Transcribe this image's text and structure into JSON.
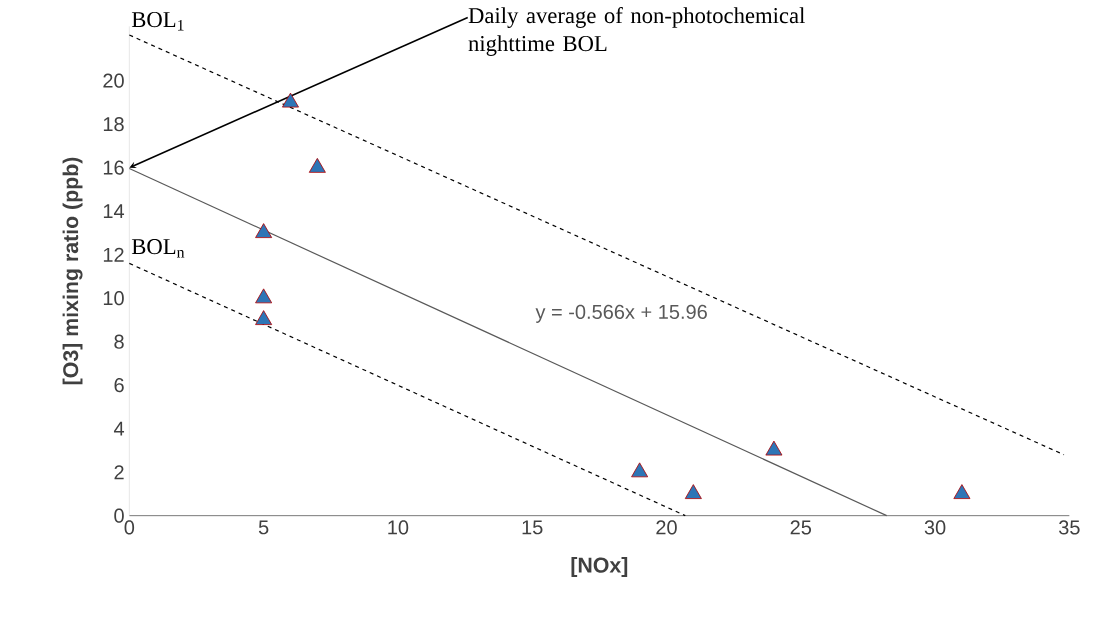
{
  "chart_data": {
    "type": "scatter",
    "xlabel": "[NOx]",
    "ylabel": "[O3] mixing ratio (ppb)",
    "xlim": [
      0,
      35
    ],
    "ylim": [
      0,
      22.5
    ],
    "xticks": [
      0,
      5,
      10,
      15,
      20,
      25,
      30,
      35
    ],
    "yticks": [
      0,
      2,
      4,
      6,
      8,
      10,
      12,
      14,
      16,
      18,
      20
    ],
    "marker": "triangle",
    "series": [
      {
        "type": "scatter",
        "color": "#2e75b6",
        "x": [
          5,
          5,
          5,
          6,
          7,
          19,
          21,
          24,
          31
        ],
        "values": [
          13,
          10,
          9,
          19,
          16,
          2,
          1,
          3,
          1
        ]
      },
      {
        "type": "line",
        "name": "y = -0.566x + 15.96",
        "color": "#595959",
        "line_style": "solid",
        "marker": "none",
        "x": [
          0,
          28.2
        ],
        "values": [
          15.96,
          0
        ]
      },
      {
        "type": "line",
        "name": "BOL$_{1}$",
        "color": "#000000",
        "line_style": "dashed",
        "marker": "none",
        "x": [
          0,
          34.8
        ],
        "values": [
          22.1,
          2.8
        ]
      },
      {
        "type": "line",
        "name": "BOL$_{n}$",
        "color": "#000000",
        "line_style": "dashed",
        "marker": "none",
        "x": [
          0,
          20.7
        ],
        "values": [
          11.6,
          0
        ]
      }
    ],
    "annotations": [
      {
        "text": "Daily average of non-photochemical nighttime BOL",
        "x": 0,
        "y": 16
      }
    ]
  }
}
